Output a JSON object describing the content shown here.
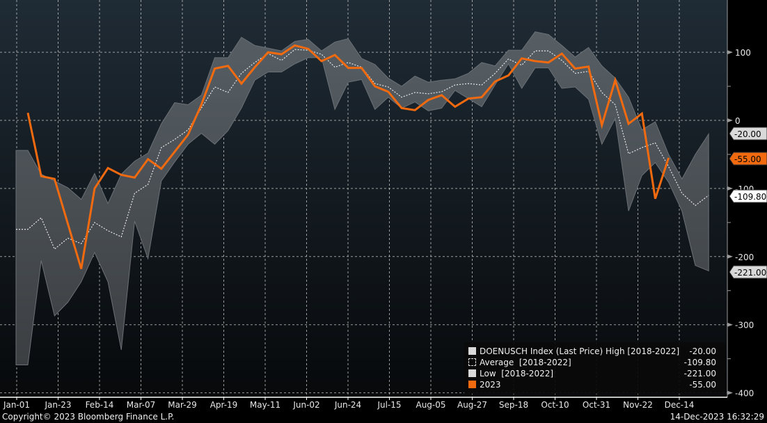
{
  "chart_data": {
    "type": "area",
    "title": "",
    "xlabel": "",
    "ylabel": "",
    "ylim": [
      -400,
      150
    ],
    "yticks": [
      100,
      0,
      -100,
      -200,
      -300,
      -400
    ],
    "ytick_labels": [
      "100",
      "0",
      "-100",
      "-200",
      "-300",
      "-400"
    ],
    "xtick_labels": [
      "Jan-01",
      "Jan-23",
      "Feb-14",
      "Mar-07",
      "Mar-29",
      "Apr-19",
      "May-11",
      "Jun-02",
      "Jun-24",
      "Jul-15",
      "Aug-05",
      "Aug-27",
      "Sep-18",
      "Oct-10",
      "Oct-31",
      "Nov-22",
      "Dec-14"
    ],
    "x_unit": "weekly observations starting week ending Jan-06",
    "grid": true,
    "legend_position": "bottom-right",
    "series": [
      {
        "name": "DOENUSCH Index (Last Price) High [2018-2022]",
        "role": "high",
        "color": "#d9d9d9",
        "last": "-20.00",
        "values": [
          -44,
          -79,
          -89,
          -99,
          -116,
          -78,
          -122,
          -79,
          -60,
          -48,
          -5,
          26,
          23,
          37,
          92,
          92,
          122,
          110,
          106,
          102,
          116,
          119,
          102,
          115,
          120,
          91,
          82,
          62,
          50,
          65,
          56,
          59,
          61,
          69,
          85,
          80,
          103,
          103,
          130,
          126,
          110,
          93,
          107,
          80,
          62,
          34,
          -14,
          -2,
          -50,
          -86,
          -50,
          -20
        ]
      },
      {
        "name": "Average  [2018-2022]",
        "role": "average",
        "color": "#ffffff",
        "last": "-109.80",
        "values": [
          -160,
          -143,
          -189,
          -173,
          -181,
          -150,
          -162,
          -171,
          -107,
          -94,
          -40,
          -28,
          -14,
          18,
          49,
          41,
          69,
          85,
          98,
          88,
          104,
          103,
          97,
          78,
          85,
          78,
          54,
          49,
          34,
          41,
          39,
          42,
          52,
          54,
          52,
          69,
          90,
          81,
          102,
          102,
          88,
          69,
          72,
          41,
          23,
          -49,
          -40,
          -33,
          -68,
          -107,
          -125,
          -110
        ]
      },
      {
        "name": "Low  [2018-2022]",
        "role": "low",
        "color": "#d9d9d9",
        "last": "-221.00",
        "values": [
          -359,
          -206,
          -287,
          -267,
          -237,
          -194,
          -237,
          -337,
          -148,
          -203,
          -89,
          -61,
          -35,
          -19,
          -35,
          -15,
          18,
          59,
          71,
          71,
          83,
          92,
          92,
          16,
          56,
          60,
          16,
          34,
          18,
          27,
          14,
          18,
          44,
          32,
          20,
          52,
          83,
          47,
          77,
          77,
          47,
          49,
          31,
          -35,
          3,
          -133,
          -81,
          -62,
          -91,
          -133,
          -213,
          -221
        ]
      },
      {
        "name": "2023",
        "role": "current",
        "color": "#f26a0f",
        "last": "-55.00",
        "values": [
          11,
          -82,
          -86,
          -152,
          -218,
          -100,
          -70,
          -80,
          -84,
          -57,
          -71,
          -46,
          -21,
          23,
          76,
          80,
          54,
          78,
          100,
          97,
          110,
          105,
          87,
          96,
          77,
          77,
          50,
          42,
          18,
          15,
          30,
          37,
          20,
          32,
          34,
          57,
          66,
          91,
          87,
          85,
          98,
          76,
          79,
          -7,
          59,
          -5,
          10,
          -115,
          -55
        ]
      }
    ]
  },
  "legend": [
    {
      "label": "DOENUSCH Index (Last Price) High [2018-2022]",
      "value": "-20.00"
    },
    {
      "label": "Average  [2018-2022]",
      "value": "-109.80"
    },
    {
      "label": "Low  [2018-2022]",
      "value": "-221.00"
    },
    {
      "label": "2023",
      "value": "-55.00"
    }
  ],
  "footer": {
    "copyright": "Copyright© 2023 Bloomberg Finance L.P.",
    "timestamp": "14-Dec-2023 16:32:29"
  },
  "colors": {
    "accent": "#f26a0f",
    "band": "#4a5157",
    "bg_top": "#1f2b35",
    "bg_bottom": "#07090b"
  }
}
